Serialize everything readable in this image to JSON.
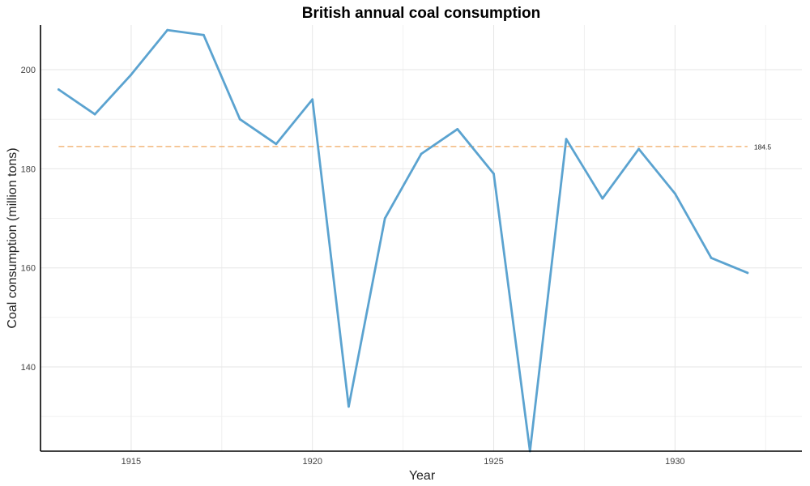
{
  "chart_data": {
    "type": "line",
    "title": "British annual coal consumption",
    "xlabel": "Year",
    "ylabel": "Coal consumption (million tons)",
    "x": [
      1913,
      1914,
      1915,
      1916,
      1917,
      1918,
      1919,
      1920,
      1921,
      1922,
      1923,
      1924,
      1925,
      1926,
      1927,
      1928,
      1929,
      1930,
      1931,
      1932
    ],
    "series": [
      {
        "values": [
          196,
          191,
          199,
          208,
          207,
          190,
          185,
          194,
          132,
          170,
          183,
          188,
          179,
          123,
          186,
          174,
          184,
          175,
          162,
          159
        ],
        "color": "#5ba3d0"
      }
    ],
    "reference_line": {
      "value": 184.5,
      "label": "184.5",
      "color": "#f0a860"
    },
    "xlim": [
      1912.5,
      1933.5
    ],
    "ylim": [
      123,
      209
    ],
    "x_ticks": [
      1915,
      1920,
      1925,
      1930
    ],
    "y_ticks": [
      140,
      160,
      180,
      200
    ],
    "grid": true,
    "legend": "none"
  }
}
